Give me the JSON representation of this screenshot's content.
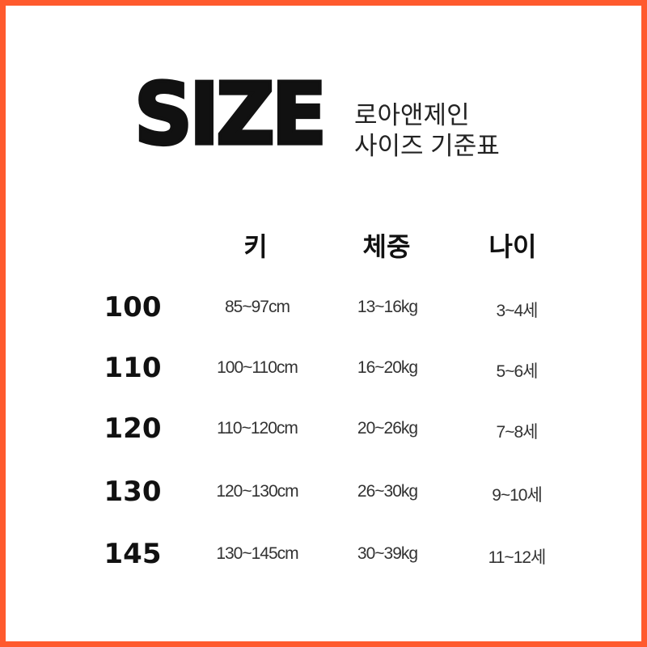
{
  "title": {
    "logo": "SIZE",
    "brand": "로아앤제인",
    "subtitle": "사이즈 기준표"
  },
  "colors": {
    "border": "#ff5a2d",
    "text": "#111111"
  },
  "table": {
    "headers": [
      "키",
      "체중",
      "나이"
    ],
    "rows": [
      {
        "size": "100",
        "height": "85~97cm",
        "weight": "13~16kg",
        "age": "3~4세"
      },
      {
        "size": "110",
        "height": "100~110cm",
        "weight": "16~20kg",
        "age": "5~6세"
      },
      {
        "size": "120",
        "height": "110~120cm",
        "weight": "20~26kg",
        "age": "7~8세"
      },
      {
        "size": "130",
        "height": "120~130cm",
        "weight": "26~30kg",
        "age": "9~10세"
      },
      {
        "size": "145",
        "height": "130~145cm",
        "weight": "30~39kg",
        "age": "11~12세"
      }
    ]
  }
}
